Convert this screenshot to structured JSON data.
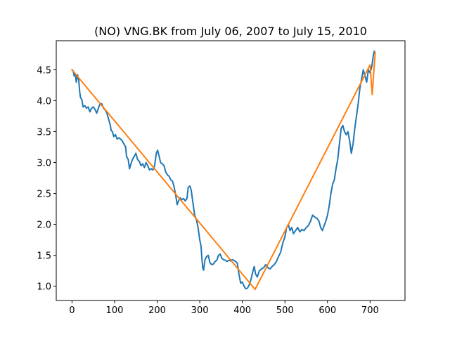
{
  "chart_data": {
    "type": "line",
    "title": "(NO) VNG.BK from July 06, 2007 to July 15, 2010",
    "xlabel": "",
    "ylabel": "",
    "xlim": [
      -37,
      782
    ],
    "ylim": [
      0.77,
      4.97
    ],
    "x_ticks": [
      0,
      100,
      200,
      300,
      400,
      500,
      600,
      700
    ],
    "y_ticks": [
      1.0,
      1.5,
      2.0,
      2.5,
      3.0,
      3.5,
      4.0,
      4.5
    ],
    "y_tick_labels": [
      "1.0",
      "1.5",
      "2.0",
      "2.5",
      "3.0",
      "3.5",
      "4.0",
      "4.5"
    ],
    "grid": false,
    "legend": "none",
    "series": [
      {
        "color": "#1f77b4",
        "points": [
          [
            0,
            4.5
          ],
          [
            3,
            4.48
          ],
          [
            5,
            4.4
          ],
          [
            8,
            4.43
          ],
          [
            10,
            4.3
          ],
          [
            13,
            4.42
          ],
          [
            16,
            4.32
          ],
          [
            18,
            4.15
          ],
          [
            20,
            4.05
          ],
          [
            23,
            4.02
          ],
          [
            26,
            3.9
          ],
          [
            30,
            3.92
          ],
          [
            34,
            3.88
          ],
          [
            38,
            3.9
          ],
          [
            42,
            3.82
          ],
          [
            46,
            3.88
          ],
          [
            50,
            3.9
          ],
          [
            54,
            3.86
          ],
          [
            58,
            3.8
          ],
          [
            62,
            3.88
          ],
          [
            66,
            3.95
          ],
          [
            70,
            3.95
          ],
          [
            74,
            3.88
          ],
          [
            78,
            3.85
          ],
          [
            82,
            3.8
          ],
          [
            86,
            3.7
          ],
          [
            90,
            3.6
          ],
          [
            92,
            3.52
          ],
          [
            95,
            3.5
          ],
          [
            98,
            3.42
          ],
          [
            102,
            3.45
          ],
          [
            106,
            3.38
          ],
          [
            110,
            3.4
          ],
          [
            114,
            3.38
          ],
          [
            118,
            3.35
          ],
          [
            122,
            3.3
          ],
          [
            126,
            3.25
          ],
          [
            128,
            3.1
          ],
          [
            132,
            3.05
          ],
          [
            135,
            2.9
          ],
          [
            138,
            2.97
          ],
          [
            142,
            3.05
          ],
          [
            146,
            3.1
          ],
          [
            150,
            3.15
          ],
          [
            154,
            3.05
          ],
          [
            158,
            3.02
          ],
          [
            162,
            2.95
          ],
          [
            166,
            2.98
          ],
          [
            170,
            2.92
          ],
          [
            174,
            3.0
          ],
          [
            178,
            2.95
          ],
          [
            182,
            2.88
          ],
          [
            186,
            2.9
          ],
          [
            190,
            2.88
          ],
          [
            194,
            2.95
          ],
          [
            198,
            3.15
          ],
          [
            201,
            3.2
          ],
          [
            204,
            3.12
          ],
          [
            208,
            3.0
          ],
          [
            212,
            2.98
          ],
          [
            216,
            2.95
          ],
          [
            220,
            2.85
          ],
          [
            224,
            2.8
          ],
          [
            228,
            2.78
          ],
          [
            232,
            2.72
          ],
          [
            236,
            2.7
          ],
          [
            240,
            2.6
          ],
          [
            244,
            2.45
          ],
          [
            247,
            2.32
          ],
          [
            250,
            2.38
          ],
          [
            254,
            2.43
          ],
          [
            258,
            2.4
          ],
          [
            262,
            2.42
          ],
          [
            266,
            2.38
          ],
          [
            270,
            2.42
          ],
          [
            273,
            2.6
          ],
          [
            277,
            2.62
          ],
          [
            280,
            2.55
          ],
          [
            284,
            2.35
          ],
          [
            288,
            2.15
          ],
          [
            292,
            2.08
          ],
          [
            296,
            1.95
          ],
          [
            300,
            1.75
          ],
          [
            303,
            1.65
          ],
          [
            305,
            1.45
          ],
          [
            307,
            1.3
          ],
          [
            309,
            1.26
          ],
          [
            312,
            1.42
          ],
          [
            316,
            1.48
          ],
          [
            320,
            1.5
          ],
          [
            324,
            1.38
          ],
          [
            328,
            1.35
          ],
          [
            332,
            1.36
          ],
          [
            336,
            1.4
          ],
          [
            340,
            1.42
          ],
          [
            344,
            1.5
          ],
          [
            348,
            1.52
          ],
          [
            352,
            1.45
          ],
          [
            356,
            1.43
          ],
          [
            360,
            1.42
          ],
          [
            364,
            1.4
          ],
          [
            368,
            1.42
          ],
          [
            372,
            1.41
          ],
          [
            376,
            1.43
          ],
          [
            380,
            1.42
          ],
          [
            384,
            1.4
          ],
          [
            388,
            1.38
          ],
          [
            392,
            1.2
          ],
          [
            396,
            1.05
          ],
          [
            400,
            1.07
          ],
          [
            404,
            1.0
          ],
          [
            408,
            0.96
          ],
          [
            412,
            0.97
          ],
          [
            416,
            1.02
          ],
          [
            420,
            1.1
          ],
          [
            424,
            1.22
          ],
          [
            428,
            1.32
          ],
          [
            431,
            1.2
          ],
          [
            435,
            1.15
          ],
          [
            440,
            1.25
          ],
          [
            445,
            1.28
          ],
          [
            450,
            1.3
          ],
          [
            455,
            1.35
          ],
          [
            460,
            1.3
          ],
          [
            465,
            1.28
          ],
          [
            470,
            1.32
          ],
          [
            475,
            1.35
          ],
          [
            480,
            1.4
          ],
          [
            485,
            1.48
          ],
          [
            490,
            1.55
          ],
          [
            495,
            1.7
          ],
          [
            500,
            1.8
          ],
          [
            504,
            1.95
          ],
          [
            508,
            2.0
          ],
          [
            512,
            1.9
          ],
          [
            516,
            1.95
          ],
          [
            520,
            1.85
          ],
          [
            525,
            1.9
          ],
          [
            530,
            1.95
          ],
          [
            535,
            1.88
          ],
          [
            540,
            1.92
          ],
          [
            545,
            1.9
          ],
          [
            550,
            1.95
          ],
          [
            555,
            1.98
          ],
          [
            560,
            2.05
          ],
          [
            565,
            2.15
          ],
          [
            570,
            2.12
          ],
          [
            575,
            2.1
          ],
          [
            580,
            2.05
          ],
          [
            584,
            1.95
          ],
          [
            588,
            1.9
          ],
          [
            592,
            1.98
          ],
          [
            596,
            2.05
          ],
          [
            600,
            2.15
          ],
          [
            604,
            2.3
          ],
          [
            608,
            2.5
          ],
          [
            612,
            2.65
          ],
          [
            616,
            2.72
          ],
          [
            620,
            2.9
          ],
          [
            624,
            3.05
          ],
          [
            628,
            3.3
          ],
          [
            632,
            3.55
          ],
          [
            636,
            3.6
          ],
          [
            640,
            3.5
          ],
          [
            644,
            3.45
          ],
          [
            648,
            3.5
          ],
          [
            652,
            3.35
          ],
          [
            656,
            3.15
          ],
          [
            660,
            3.3
          ],
          [
            664,
            3.55
          ],
          [
            668,
            3.75
          ],
          [
            672,
            3.95
          ],
          [
            676,
            4.2
          ],
          [
            680,
            4.35
          ],
          [
            684,
            4.5
          ],
          [
            688,
            4.4
          ],
          [
            692,
            4.3
          ],
          [
            696,
            4.5
          ],
          [
            700,
            4.45
          ],
          [
            704,
            4.55
          ],
          [
            708,
            4.75
          ],
          [
            710,
            4.8
          ]
        ]
      },
      {
        "color": "#ff7f0e",
        "points": [
          [
            0,
            4.5
          ],
          [
            430,
            0.95
          ],
          [
            700,
            4.58
          ],
          [
            705,
            4.1
          ],
          [
            712,
            4.78
          ]
        ]
      }
    ]
  }
}
